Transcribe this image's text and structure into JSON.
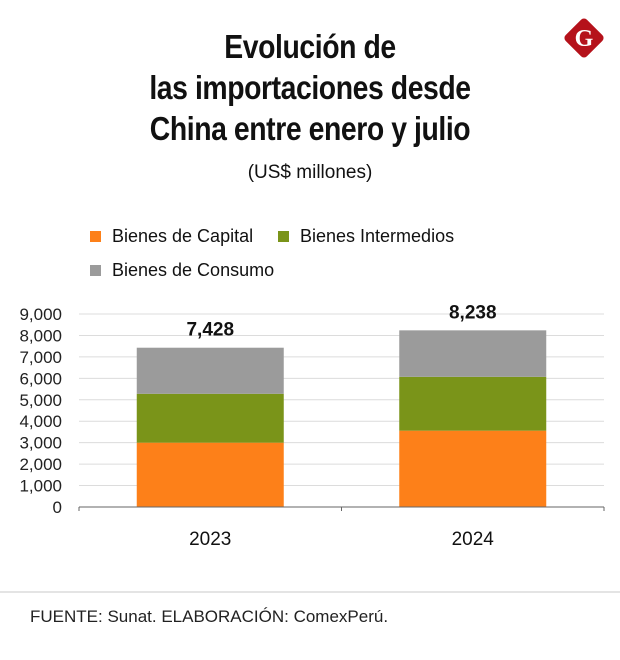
{
  "header": {
    "title_lines": [
      "Evolución de",
      "las importaciones desde",
      "China entre enero y julio"
    ],
    "subtitle": "(US$ millones)",
    "logo_letter": "G",
    "logo_color": "#b5121b"
  },
  "footer": {
    "source": "FUENTE: Sunat. ELABORACIÓN: ComexPerú."
  },
  "chart_data": {
    "type": "bar",
    "stacked": true,
    "title": "Evolución de las importaciones desde China entre enero y julio",
    "subtitle": "(US$ millones)",
    "xlabel": "",
    "ylabel": "",
    "categories": [
      "2023",
      "2024"
    ],
    "series": [
      {
        "name": "Bienes de Capital",
        "color": "#fd8019",
        "values": [
          3000,
          3560
        ]
      },
      {
        "name": "Bienes Intermedios",
        "color": "#7a9419",
        "values": [
          2280,
          2510
        ]
      },
      {
        "name": "Bienes de Consumo",
        "color": "#9b9b9b",
        "values": [
          2148,
          2168
        ]
      }
    ],
    "totals": [
      7428,
      8238
    ],
    "total_labels": [
      "7,428",
      "8,238"
    ],
    "ylim": [
      0,
      9000
    ],
    "yticks": [
      0,
      1000,
      2000,
      3000,
      4000,
      5000,
      6000,
      7000,
      8000,
      9000
    ],
    "ytick_labels": [
      "0",
      "1,000",
      "2,000",
      "3,000",
      "4,000",
      "5,000",
      "6,000",
      "7,000",
      "8,000",
      "9,000"
    ],
    "grid": true,
    "legend_position": "top-left"
  }
}
